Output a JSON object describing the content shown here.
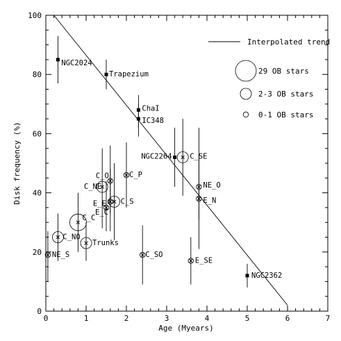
{
  "chart_data": {
    "type": "scatter",
    "xlabel": "Age (Myears)",
    "ylabel": "Disk frequency (%)",
    "xlim": [
      0,
      7
    ],
    "ylim": [
      0,
      100
    ],
    "xticks": [
      "0",
      "1",
      "2",
      "3",
      "4",
      "5",
      "6",
      "7"
    ],
    "yticks": [
      "0",
      "20",
      "40",
      "60",
      "80",
      "100"
    ],
    "trend": {
      "label": "Interpolated trend",
      "x": [
        0.2,
        6.0
      ],
      "y": [
        100,
        2
      ]
    },
    "legend": [
      {
        "label": "29 OB stars",
        "size": "large"
      },
      {
        "label": "2-3 OB stars",
        "size": "medium"
      },
      {
        "label": "0-1 OB stars",
        "size": "small"
      }
    ],
    "points": [
      {
        "name": "NGC2024",
        "x": 0.3,
        "y": 85,
        "ylo": 77,
        "yhi": 93,
        "marker": "filled",
        "ob": "none"
      },
      {
        "name": "Trapezium",
        "x": 1.5,
        "y": 80,
        "ylo": 75,
        "yhi": 85,
        "marker": "filled",
        "ob": "none"
      },
      {
        "name": "ChaI",
        "x": 2.3,
        "y": 68,
        "ylo": 62,
        "yhi": 73,
        "marker": "filled",
        "ob": "none"
      },
      {
        "name": "IC348",
        "x": 2.3,
        "y": 65,
        "ylo": 59,
        "yhi": 70,
        "marker": "filled",
        "ob": "none"
      },
      {
        "name": "NGC2264",
        "x": 3.2,
        "y": 52,
        "ylo": 42,
        "yhi": 62,
        "marker": "filled",
        "ob": "none"
      },
      {
        "name": "C_SE",
        "x": 3.4,
        "y": 52,
        "ylo": 39,
        "yhi": 65,
        "marker": "cross",
        "ob": "medium"
      },
      {
        "name": "NE_O",
        "x": 3.8,
        "y": 42,
        "ylo": 31,
        "yhi": 53,
        "marker": "cross",
        "ob": "small"
      },
      {
        "name": "E_N",
        "x": 3.8,
        "y": 38,
        "ylo": 21,
        "yhi": 62,
        "marker": "cross",
        "ob": "small"
      },
      {
        "name": "C_P",
        "x": 2.0,
        "y": 46,
        "ylo": 35,
        "yhi": 57,
        "marker": "cross",
        "ob": "small"
      },
      {
        "name": "C_O",
        "x": 1.6,
        "y": 44,
        "ylo": 33,
        "yhi": 56,
        "marker": "cross",
        "ob": "small"
      },
      {
        "name": "C_NE",
        "x": 1.4,
        "y": 42,
        "ylo": 28,
        "yhi": 55,
        "marker": "cross",
        "ob": "medium"
      },
      {
        "name": "C_S",
        "x": 1.7,
        "y": 37,
        "ylo": 24,
        "yhi": 50,
        "marker": "cross",
        "ob": "medium"
      },
      {
        "name": "E_E",
        "x": 1.6,
        "y": 37,
        "ylo": 27,
        "yhi": 48,
        "marker": "cross",
        "ob": "small"
      },
      {
        "name": "E_C",
        "x": 1.5,
        "y": 35,
        "ylo": 27,
        "yhi": 44,
        "marker": "cross",
        "ob": "small"
      },
      {
        "name": "C_C",
        "x": 0.8,
        "y": 30,
        "ylo": 20,
        "yhi": 40,
        "marker": "cross",
        "ob": "large"
      },
      {
        "name": "C_NO",
        "x": 0.3,
        "y": 25,
        "ylo": 17,
        "yhi": 33,
        "marker": "cross",
        "ob": "medium"
      },
      {
        "name": "Trunks",
        "x": 1.0,
        "y": 23,
        "ylo": 17,
        "yhi": 30,
        "marker": "cross",
        "ob": "medium"
      },
      {
        "name": "NE_S",
        "x": 0.05,
        "y": 19,
        "ylo": 10,
        "yhi": 27,
        "marker": "cross",
        "ob": "small"
      },
      {
        "name": "C_SO",
        "x": 2.4,
        "y": 19,
        "ylo": 9,
        "yhi": 29,
        "marker": "cross",
        "ob": "small"
      },
      {
        "name": "E_SE",
        "x": 3.6,
        "y": 17,
        "ylo": 9,
        "yhi": 25,
        "marker": "cross",
        "ob": "small"
      },
      {
        "name": "NGC2362",
        "x": 5.0,
        "y": 12,
        "ylo": 8,
        "yhi": 16,
        "marker": "filled",
        "ob": "none"
      }
    ]
  }
}
